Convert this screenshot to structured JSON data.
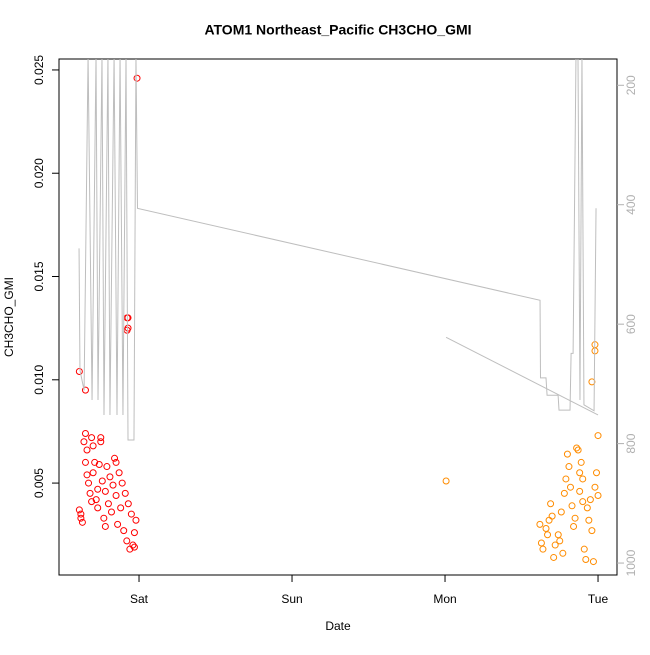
{
  "chart_data": {
    "type": "scatter",
    "title": "ATOM1 Northeast_Pacific CH3CHO_GMI",
    "xlabel": "Date",
    "ylabel": "CH3CHO_GMI",
    "xlim": [
      -0.523,
      3.124
    ],
    "xticks": [
      {
        "value": 0,
        "label": "Sat"
      },
      {
        "value": 1,
        "label": "Sun"
      },
      {
        "value": 2,
        "label": "Mon"
      },
      {
        "value": 3,
        "label": "Tue"
      }
    ],
    "ylim": [
      0.00055,
      0.02553
    ],
    "yticks": [
      0.005,
      {
        "value": 0.01,
        "label": "0.010"
      },
      0.015,
      {
        "value": 0.02,
        "label": "0.020"
      },
      0.025
    ],
    "y2lim": [
      1020,
      156
    ],
    "y2ticks": [
      200,
      400,
      600,
      800,
      1000
    ],
    "series": [
      {
        "type": "scatter",
        "color": "#ff0000",
        "x": [
          -0.39,
          -0.35,
          -0.013,
          -0.078,
          -0.072,
          -0.078,
          -0.072,
          -0.39,
          -0.38,
          -0.37,
          -0.38,
          -0.36,
          -0.35,
          -0.34,
          -0.35,
          -0.34,
          -0.33,
          -0.32,
          -0.31,
          -0.3,
          -0.3,
          -0.29,
          -0.28,
          -0.27,
          -0.27,
          -0.26,
          -0.25,
          -0.25,
          -0.24,
          -0.23,
          -0.22,
          -0.21,
          -0.2,
          -0.19,
          -0.18,
          -0.17,
          -0.16,
          -0.15,
          -0.15,
          -0.14,
          -0.13,
          -0.12,
          -0.11,
          -0.1,
          -0.09,
          -0.08,
          -0.07,
          -0.06,
          -0.05,
          -0.04,
          -0.03,
          -0.02,
          -0.03,
          -0.31,
          -0.22
        ],
        "values": [
          0.0104,
          0.0095,
          0.0246,
          0.013,
          0.013,
          0.0124,
          0.0125,
          0.0037,
          0.0033,
          0.0031,
          0.0035,
          0.007,
          0.0074,
          0.0066,
          0.006,
          0.0054,
          0.005,
          0.0045,
          0.0072,
          0.0068,
          0.0055,
          0.006,
          0.0042,
          0.0047,
          0.0038,
          0.0059,
          0.0072,
          0.007,
          0.0051,
          0.0033,
          0.0046,
          0.0058,
          0.004,
          0.0053,
          0.0036,
          0.0049,
          0.0062,
          0.006,
          0.0044,
          0.003,
          0.0055,
          0.0038,
          0.005,
          0.0027,
          0.0045,
          0.0022,
          0.004,
          0.0018,
          0.0035,
          0.002,
          0.0019,
          0.0032,
          0.0026,
          0.0041,
          0.0029
        ]
      },
      {
        "type": "scatter",
        "color": "#ff8c00",
        "x": [
          2.007,
          3.0,
          2.98,
          2.98,
          2.96,
          2.62,
          2.63,
          2.64,
          2.66,
          2.67,
          2.68,
          2.7,
          2.71,
          2.72,
          2.74,
          2.75,
          2.76,
          2.78,
          2.79,
          2.8,
          2.81,
          2.82,
          2.83,
          2.84,
          2.85,
          2.86,
          2.87,
          2.88,
          2.88,
          2.89,
          2.9,
          2.91,
          2.92,
          2.93,
          2.94,
          2.95,
          2.96,
          2.97,
          2.98,
          2.99,
          3.0,
          2.69,
          2.77,
          2.9
        ],
        "values": [
          0.0051,
          0.0073,
          0.0117,
          0.0114,
          0.0099,
          0.003,
          0.0021,
          0.0018,
          0.0028,
          0.0025,
          0.0032,
          0.0034,
          0.0014,
          0.002,
          0.0025,
          0.0022,
          0.0036,
          0.0045,
          0.0052,
          0.0064,
          0.0058,
          0.0048,
          0.0039,
          0.0029,
          0.0033,
          0.0067,
          0.0066,
          0.0055,
          0.0046,
          0.006,
          0.0052,
          0.0018,
          0.0013,
          0.0038,
          0.0032,
          0.0042,
          0.0027,
          0.0012,
          0.0048,
          0.0055,
          0.0044,
          0.004,
          0.0016,
          0.0041
        ]
      },
      {
        "type": "line",
        "axis": "y2",
        "color": "#bebebe",
        "x": [
          -0.392,
          -0.386,
          -0.359,
          -0.333,
          -0.307,
          -0.281,
          -0.268,
          -0.242,
          -0.229,
          -0.203,
          -0.19,
          -0.163,
          -0.144,
          -0.124,
          -0.105,
          -0.085,
          -0.072,
          -0.033,
          -0.02,
          -0.01,
          2.621,
          2.624,
          2.66,
          2.667,
          2.739,
          2.745,
          2.817,
          2.824,
          2.837,
          2.856,
          2.869,
          2.882,
          2.895,
          2.908,
          2.974,
          2.987,
          null,
          2.007,
          3.0
        ],
        "values": [
          473,
          677,
          711,
          150,
          727,
          150,
          727,
          150,
          752,
          150,
          752,
          150,
          752,
          150,
          752,
          150,
          794,
          794,
          150,
          406,
          560,
          690,
          690,
          719,
          719,
          744,
          744,
          649,
          649,
          150,
          150,
          727,
          150,
          735,
          745,
          406,
          null,
          622,
          752
        ]
      }
    ]
  }
}
